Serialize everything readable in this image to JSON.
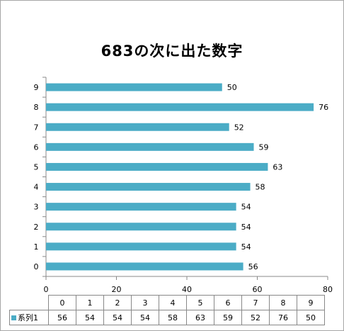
{
  "chart_data": {
    "type": "bar",
    "orientation": "horizontal",
    "title": "683の次に出た数字",
    "categories": [
      "0",
      "1",
      "2",
      "3",
      "4",
      "5",
      "6",
      "7",
      "8",
      "9"
    ],
    "series": [
      {
        "name": "系列1",
        "values": [
          56,
          54,
          54,
          54,
          58,
          63,
          59,
          52,
          76,
          50
        ],
        "color": "#4bacc6"
      }
    ],
    "xlim": [
      0,
      80
    ],
    "xticks": [
      0,
      20,
      40,
      60,
      80
    ],
    "grid": false,
    "data_labels": true,
    "data_table": true
  }
}
